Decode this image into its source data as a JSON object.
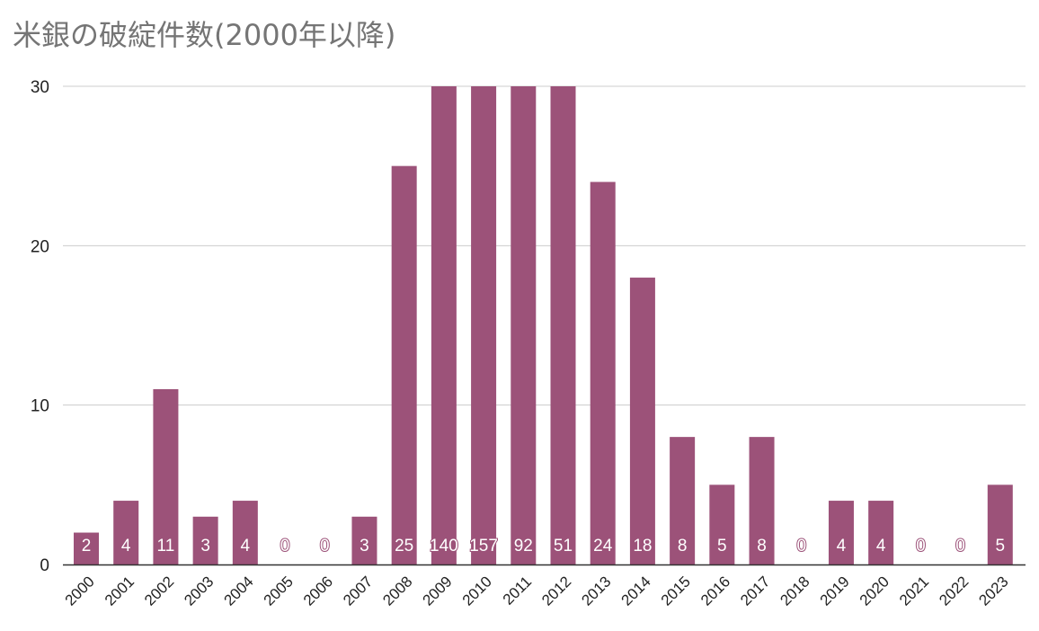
{
  "chart_data": {
    "type": "bar",
    "title": "米銀の破綻件数(2000年以降)",
    "xlabel": "",
    "ylabel": "",
    "categories": [
      "2000",
      "2001",
      "2002",
      "2003",
      "2004",
      "2005",
      "2006",
      "2007",
      "2008",
      "2009",
      "2010",
      "2011",
      "2012",
      "2013",
      "2014",
      "2015",
      "2016",
      "2017",
      "2018",
      "2019",
      "2020",
      "2021",
      "2022",
      "2023"
    ],
    "values": [
      2,
      4,
      11,
      3,
      4,
      0,
      0,
      3,
      25,
      140,
      157,
      92,
      51,
      24,
      18,
      8,
      5,
      8,
      0,
      4,
      4,
      0,
      0,
      5
    ],
    "data_labels": [
      "2",
      "4",
      "11",
      "3",
      "4",
      "0",
      "0",
      "3",
      "25",
      "140",
      "157",
      "92",
      "51",
      "24",
      "18",
      "8",
      "5",
      "8",
      "0",
      "4",
      "4",
      "0",
      "0",
      "5"
    ],
    "ylim": [
      0,
      30
    ],
    "yticks": [
      "0",
      "10",
      "20",
      "30"
    ],
    "grid": true,
    "legend": "none",
    "colors": {
      "bar": "#9c5279",
      "grid": "#cccccc",
      "axis": "#333333"
    }
  }
}
